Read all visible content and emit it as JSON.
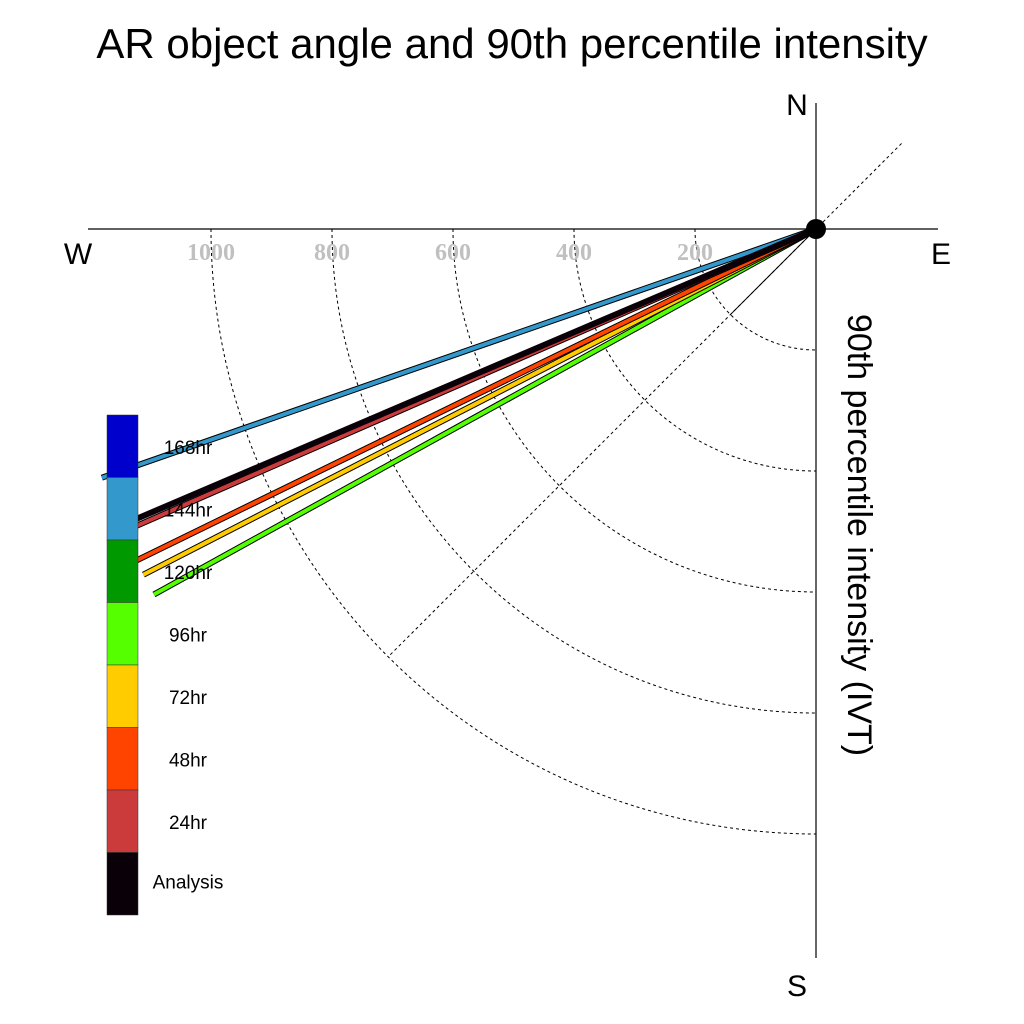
{
  "chart_data": {
    "type": "polar-line",
    "title": "AR object angle and 90th percentile intensity",
    "ylabel": "90th percentile intensity (IVT)",
    "compass": {
      "north": "N",
      "south": "S",
      "east": "E",
      "west": "W"
    },
    "radial_ticks": [
      "200",
      "400",
      "600",
      "800",
      "1000"
    ],
    "radial_tick_values": [
      200,
      400,
      600,
      800,
      1000
    ],
    "rmax": 1200,
    "direction_unit": "degrees clockwise from north",
    "series": [
      {
        "name": "168hr",
        "color": "#0000cc",
        "angle_deg": null,
        "intensity": null
      },
      {
        "name": "144hr",
        "color": "#3399cc",
        "angle_deg": 250.8,
        "intensity": 1250
      },
      {
        "name": "120hr",
        "color": "#009900",
        "angle_deg": null,
        "intensity": null
      },
      {
        "name": "96hr",
        "color": "#55ff00",
        "angle_deg": 241.1,
        "intensity": 1250
      },
      {
        "name": "72hr",
        "color": "#ffcc00",
        "angle_deg": 242.8,
        "intensity": 1250
      },
      {
        "name": "48hr",
        "color": "#ff4400",
        "angle_deg": 244.0,
        "intensity": 1250
      },
      {
        "name": "24hr",
        "color": "#cc3b3b",
        "angle_deg": 246.4,
        "intensity": 1250
      },
      {
        "name": "Analysis",
        "color": "#0a0008",
        "angle_deg": 246.9,
        "intensity": 1250
      }
    ],
    "legend": [
      "168hr",
      "144hr",
      "120hr",
      "96hr",
      "72hr",
      "48hr",
      "24hr",
      "Analysis"
    ],
    "legend_placement": "left",
    "grid": true
  }
}
